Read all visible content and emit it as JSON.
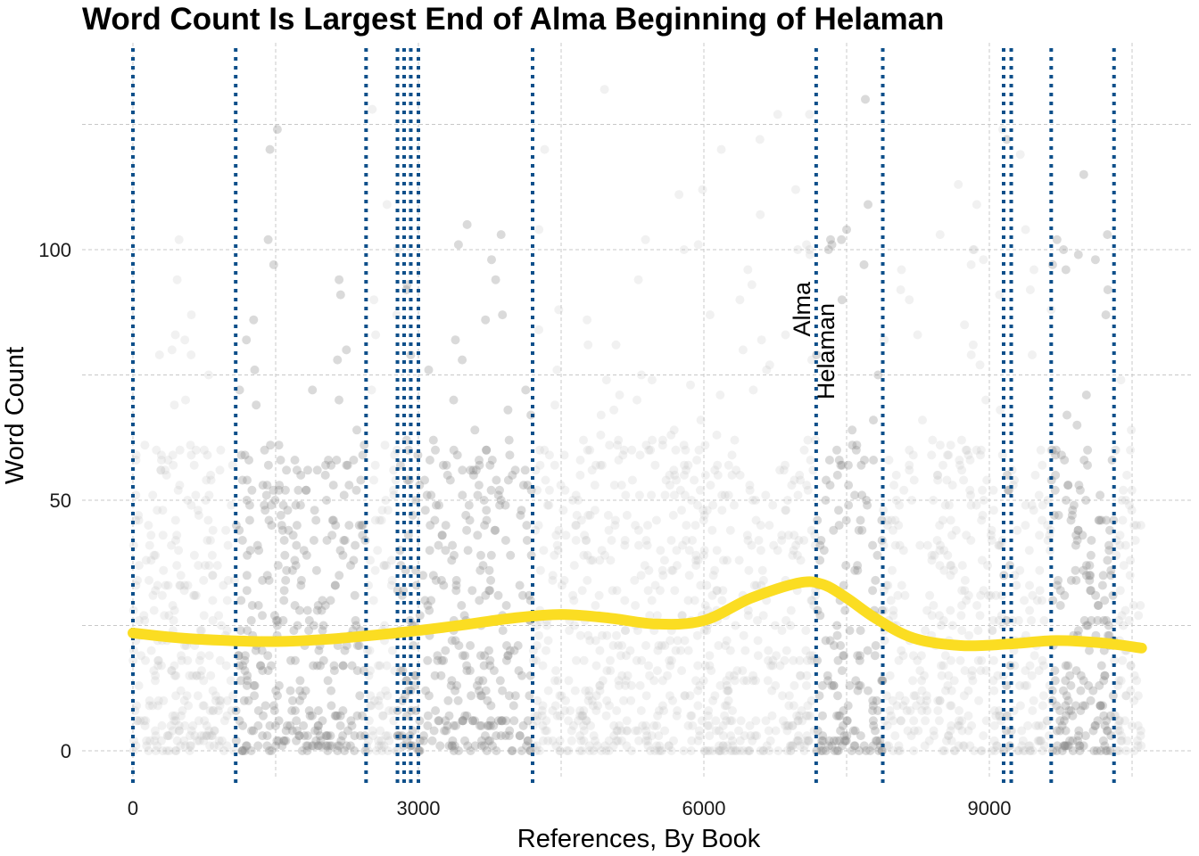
{
  "chart_data": {
    "type": "scatter",
    "title": "Word Count Is Largest End of Alma Beginning of Helaman",
    "xlabel": "References, By Book",
    "ylabel": "Word Count",
    "xlim": [
      0,
      10700
    ],
    "ylim": [
      0,
      130
    ],
    "x_ticks": [
      0,
      3000,
      6000,
      9000
    ],
    "x_tick_labels": [
      "0",
      "3000",
      "6000",
      "9000"
    ],
    "y_ticks": [
      0,
      50,
      100
    ],
    "y_tick_labels": [
      "0",
      "50",
      "100"
    ],
    "grid": true,
    "book_boundaries": [
      0,
      1080,
      2450,
      2780,
      2850,
      2920,
      3000,
      4200,
      7180,
      7880,
      9150,
      9230,
      9650,
      10310
    ],
    "highlighted_books": [
      {
        "name": "Alma",
        "start": 7180
      },
      {
        "name": "Helaman",
        "start": 7180
      }
    ],
    "dense_ranges": [
      [
        1080,
        2450
      ],
      [
        2780,
        4200
      ],
      [
        7180,
        7880
      ],
      [
        9150,
        9230
      ],
      [
        9650,
        10310
      ]
    ],
    "smooth_trend": {
      "x": [
        0,
        500,
        1000,
        1500,
        2000,
        2500,
        3000,
        3500,
        4000,
        4500,
        5000,
        5500,
        6000,
        6500,
        7000,
        7250,
        7500,
        7800,
        8200,
        8700,
        9200,
        9700,
        10200,
        10600
      ],
      "y": [
        23.5,
        22.5,
        22.0,
        21.8,
        22.2,
        23.0,
        24.0,
        25.2,
        26.5,
        27.2,
        26.5,
        25.3,
        26.0,
        30.5,
        33.5,
        33.2,
        30.5,
        26.5,
        22.5,
        21.0,
        21.3,
        22.0,
        21.5,
        20.5
      ]
    },
    "colors": {
      "points": "#bdbdbd",
      "dense_points": "#8c8c8c",
      "trend": "#fbdd22",
      "boundaries": "#0d4f8a",
      "grid": "#c8c8c8"
    }
  }
}
